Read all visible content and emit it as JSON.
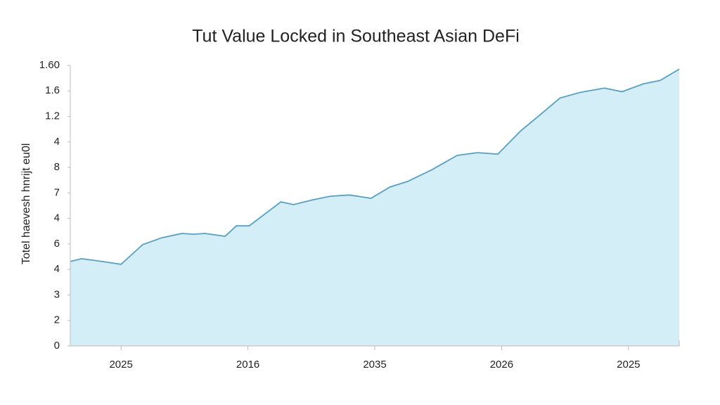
{
  "chart_data": {
    "type": "area",
    "title": "Tut Value Locked in Southeast Asian DeFi",
    "y_label": "Totel haevesh hnrijt eu0l",
    "x": [
      0.6,
      0.69,
      0.85,
      1.0,
      1.17,
      1.32,
      1.48,
      1.57,
      1.66,
      1.82,
      1.91,
      2.01,
      2.26,
      2.36,
      2.51,
      2.65,
      2.8,
      2.97,
      3.12,
      3.26,
      3.45,
      3.65,
      3.81,
      3.97,
      4.15,
      4.31,
      4.46,
      4.62,
      4.81,
      4.95,
      5.12,
      5.25,
      5.4
    ],
    "values": [
      3.31,
      3.42,
      3.31,
      3.2,
      3.97,
      4.24,
      4.41,
      4.38,
      4.41,
      4.3,
      4.71,
      4.71,
      5.65,
      5.54,
      5.73,
      5.87,
      5.92,
      5.79,
      6.23,
      6.45,
      6.91,
      7.47,
      7.58,
      7.52,
      8.43,
      9.09,
      9.72,
      9.94,
      10.11,
      9.97,
      10.28,
      10.41,
      10.85
    ],
    "color": "#5a9fc0",
    "fill": "#d4eef8",
    "xlim": [
      0.6,
      5.4
    ],
    "xticks": [
      {
        "value": 1,
        "label": "2025"
      },
      {
        "value": 2,
        "label": "2016"
      },
      {
        "value": 3,
        "label": "2035"
      },
      {
        "value": 4,
        "label": "2026"
      },
      {
        "value": 5,
        "label": "2025"
      }
    ],
    "ylim": [
      0,
      11
    ],
    "yticks": [
      0,
      {
        "value": 1,
        "label": "2"
      },
      {
        "value": 2,
        "label": "3"
      },
      {
        "value": 3,
        "label": "4"
      },
      {
        "value": 4,
        "label": "6"
      },
      {
        "value": 5,
        "label": "4"
      },
      {
        "value": 6,
        "label": "7"
      },
      {
        "value": 7,
        "label": "8"
      },
      {
        "value": 8,
        "label": "4"
      },
      {
        "value": 9,
        "label": "1.2"
      },
      {
        "value": 10,
        "label": "1.6"
      },
      {
        "value": 11,
        "label": "1.60"
      }
    ]
  }
}
